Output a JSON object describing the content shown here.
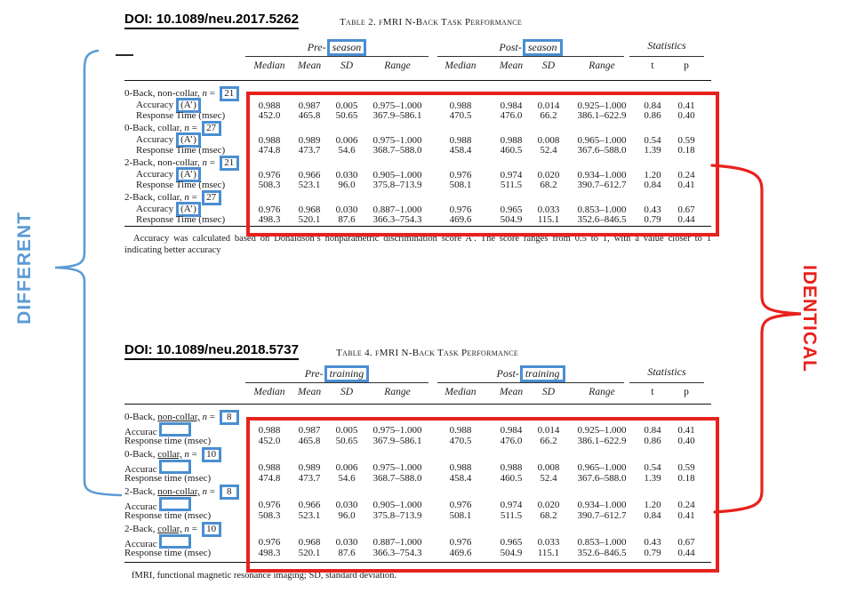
{
  "colors": {
    "red": "#e8211c",
    "blue_box": "#4a8ed2",
    "blue_annotation": "#5b9bd5"
  },
  "annotations": {
    "left_label": "DIFFERENT",
    "right_label": "IDENTICAL"
  },
  "tables": [
    {
      "doi": "DOI: 10.1089/neu.2017.5262",
      "caption": "Table 2. fMRI N-Back Task Performance",
      "groups": {
        "pre": {
          "prefix": "Pre-",
          "boxed": "season"
        },
        "post": {
          "prefix": "Post-",
          "boxed": "season"
        },
        "stats": "Statistics"
      },
      "subheaders": [
        "Median",
        "Mean",
        "SD",
        "Range",
        "Median",
        "Mean",
        "SD",
        "Range",
        "t",
        "p"
      ],
      "rows": [
        {
          "kind": "group",
          "prefix": "0-Back, ",
          "collar": "non-collar,",
          "underline": false,
          "n": "21"
        },
        {
          "kind": "data",
          "label": "Accuracy",
          "boxed": "(A’)",
          "indent": true,
          "cells": [
            "0.988",
            "0.987",
            "0.005",
            "0.975–1.000",
            "0.988",
            "0.984",
            "0.014",
            "0.925–1.000",
            "0.84",
            "0.41"
          ]
        },
        {
          "kind": "data",
          "label": "Response Time (msec)",
          "indent": true,
          "cells": [
            "452.0",
            "465.8",
            "50.65",
            "367.9–586.1",
            "470.5",
            "476.0",
            "66.2",
            "386.1–622.9",
            "0.86",
            "0.40"
          ]
        },
        {
          "kind": "group",
          "prefix": "0-Back, ",
          "collar": "collar,",
          "underline": false,
          "n": "27"
        },
        {
          "kind": "data",
          "label": "Accuracy",
          "boxed": "(A’)",
          "indent": true,
          "cells": [
            "0.988",
            "0.989",
            "0.006",
            "0.975–1.000",
            "0.988",
            "0.988",
            "0.008",
            "0.965–1.000",
            "0.54",
            "0.59"
          ]
        },
        {
          "kind": "data",
          "label": "Response Time (msec)",
          "indent": true,
          "cells": [
            "474.8",
            "473.7",
            "54.6",
            "368.7–588.0",
            "458.4",
            "460.5",
            "52.4",
            "367.6–588.0",
            "1.39",
            "0.18"
          ]
        },
        {
          "kind": "group",
          "prefix": "2-Back, ",
          "collar": "non-collar,",
          "underline": false,
          "n": "21"
        },
        {
          "kind": "data",
          "label": "Accuracy",
          "boxed": "(A’)",
          "indent": true,
          "cells": [
            "0.976",
            "0.966",
            "0.030",
            "0.905–1.000",
            "0.976",
            "0.974",
            "0.020",
            "0.934–1.000",
            "1.20",
            "0.24"
          ]
        },
        {
          "kind": "data",
          "label": "Response Time (msec)",
          "indent": true,
          "cells": [
            "508.3",
            "523.1",
            "96.0",
            "375.8–713.9",
            "508.1",
            "511.5",
            "68.2",
            "390.7–612.7",
            "0.84",
            "0.41"
          ]
        },
        {
          "kind": "group",
          "prefix": "2-Back, ",
          "collar": "collar,",
          "underline": false,
          "n": "27"
        },
        {
          "kind": "data",
          "label": "Accuracy",
          "boxed": "(A’)",
          "indent": true,
          "cells": [
            "0.976",
            "0.968",
            "0.030",
            "0.887–1.000",
            "0.976",
            "0.965",
            "0.033",
            "0.853–1.000",
            "0.43",
            "0.67"
          ]
        },
        {
          "kind": "data",
          "label": "Response Time (msec)",
          "indent": true,
          "cells": [
            "498.3",
            "520.1",
            "87.6",
            "366.3–754.3",
            "469.6",
            "504.9",
            "115.1",
            "352.6–846.5",
            "0.79",
            "0.44"
          ]
        }
      ],
      "footnote": [
        "Accuracy was calculated based on Donaldson’s nonparametric discrimination score A’. The score ranges from 0.5 to 1, with a value closer to 1",
        "indicating better accuracy"
      ]
    },
    {
      "doi": "DOI: 10.1089/neu.2018.5737",
      "caption": "Table 4. fMRI N-Back Task Performance",
      "groups": {
        "pre": {
          "prefix": "Pre-",
          "boxed": "training"
        },
        "post": {
          "prefix": "Post-",
          "boxed": "training"
        },
        "stats": "Statistics"
      },
      "subheaders": [
        "Median",
        "Mean",
        "SD",
        "Range",
        "Median",
        "Mean",
        "SD",
        "Range",
        "t",
        "p"
      ],
      "rows": [
        {
          "kind": "group",
          "prefix": "0-Back, ",
          "collar": "non-collar,",
          "underline": true,
          "n": "8"
        },
        {
          "kind": "data",
          "label": "Accurac",
          "emptyBox": true,
          "indent": false,
          "cells": [
            "0.988",
            "0.987",
            "0.005",
            "0.975–1.000",
            "0.988",
            "0.984",
            "0.014",
            "0.925–1.000",
            "0.84",
            "0.41"
          ]
        },
        {
          "kind": "data",
          "label": "Response time (msec)",
          "indent": false,
          "cells": [
            "452.0",
            "465.8",
            "50.65",
            "367.9–586.1",
            "470.5",
            "476.0",
            "66.2",
            "386.1–622.9",
            "0.86",
            "0.40"
          ]
        },
        {
          "kind": "group",
          "prefix": "0-Back, ",
          "collar": "collar,",
          "underline": true,
          "n": "10"
        },
        {
          "kind": "data",
          "label": "Accurac",
          "emptyBox": true,
          "indent": false,
          "cells": [
            "0.988",
            "0.989",
            "0.006",
            "0.975–1.000",
            "0.988",
            "0.988",
            "0.008",
            "0.965–1.000",
            "0.54",
            "0.59"
          ]
        },
        {
          "kind": "data",
          "label": "Response time (msec)",
          "indent": false,
          "cells": [
            "474.8",
            "473.7",
            "54.6",
            "368.7–588.0",
            "458.4",
            "460.5",
            "52.4",
            "367.6–588.0",
            "1.39",
            "0.18"
          ]
        },
        {
          "kind": "group",
          "prefix": "2-Back, ",
          "collar": "non-collar,",
          "underline": true,
          "n": "8"
        },
        {
          "kind": "data",
          "label": "Accurac",
          "emptyBox": true,
          "indent": false,
          "cells": [
            "0.976",
            "0.966",
            "0.030",
            "0.905–1.000",
            "0.976",
            "0.974",
            "0.020",
            "0.934–1.000",
            "1.20",
            "0.24"
          ]
        },
        {
          "kind": "data",
          "label": "Response time (msec)",
          "indent": false,
          "cells": [
            "508.3",
            "523.1",
            "96.0",
            "375.8–713.9",
            "508.1",
            "511.5",
            "68.2",
            "390.7–612.7",
            "0.84",
            "0.41"
          ]
        },
        {
          "kind": "group",
          "prefix": "2-Back, ",
          "collar": "collar,",
          "underline": true,
          "n": "10"
        },
        {
          "kind": "data",
          "label": "Accurac",
          "emptyBox": true,
          "indent": false,
          "cells": [
            "0.976",
            "0.968",
            "0.030",
            "0.887–1.000",
            "0.976",
            "0.965",
            "0.033",
            "0.853–1.000",
            "0.43",
            "0.67"
          ]
        },
        {
          "kind": "data",
          "label": "Response time (msec)",
          "indent": false,
          "cells": [
            "498.3",
            "520.1",
            "87.6",
            "366.3–754.3",
            "469.6",
            "504.9",
            "115.1",
            "352.6–846.5",
            "0.79",
            "0.44"
          ]
        }
      ],
      "footnote": [
        "fMRI, functional magnetic resonance imaging; SD, standard deviation."
      ]
    }
  ]
}
